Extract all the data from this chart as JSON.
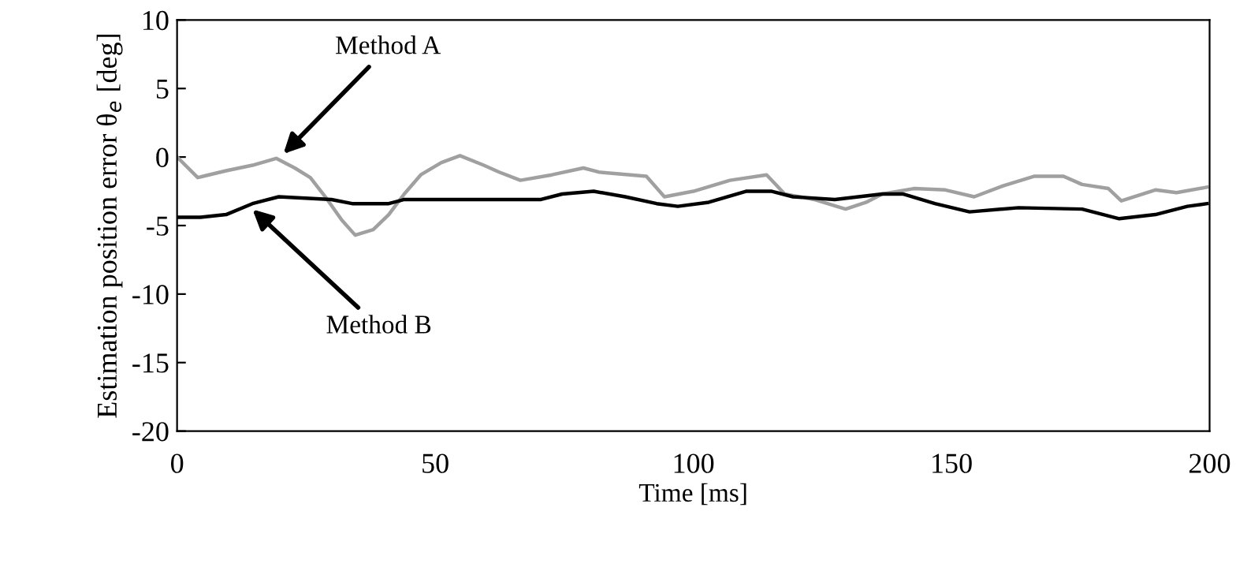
{
  "chart_data": {
    "type": "line",
    "xlabel": "Time [ms]",
    "ylabel": "Estimation position error θ$_{e}$ [deg]",
    "xlim": [
      0,
      200
    ],
    "ylim": [
      -20,
      10
    ],
    "xticks": [
      0,
      50,
      100,
      150,
      200
    ],
    "yticks": [
      -20,
      -15,
      -10,
      -5,
      0,
      5,
      10
    ],
    "grid": false,
    "legend": false,
    "marker": "none",
    "line_style": "solid",
    "series": [
      {
        "color": "#a0a0a0",
        "x": [
          0,
          4,
          9.5,
          14.6,
          19.2,
          22.8,
          25.8,
          28.9,
          31.9,
          34.5,
          38,
          41,
          44,
          47.2,
          51.2,
          54.8,
          59.4,
          62.4,
          66.5,
          72.6,
          78.7,
          81.7,
          90.9,
          94.4,
          100,
          107.1,
          114.2,
          117.7,
          123.4,
          129.5,
          133.5,
          136.6,
          142.7,
          148.8,
          154.4,
          160,
          166.1,
          171.7,
          175.3,
          180.4,
          182.9,
          189.5,
          193.6,
          199.5
        ],
        "values": [
          0,
          -1.5,
          -1.0,
          -0.6,
          -0.1,
          -0.8,
          -1.5,
          -3.0,
          -4.6,
          -5.7,
          -5.3,
          -4.2,
          -2.7,
          -1.3,
          -0.4,
          0.1,
          -0.6,
          -1.1,
          -1.7,
          -1.3,
          -0.8,
          -1.1,
          -1.4,
          -2.9,
          -2.5,
          -1.7,
          -1.3,
          -2.7,
          -3.1,
          -3.8,
          -3.3,
          -2.7,
          -2.3,
          -2.4,
          -2.9,
          -2.1,
          -1.4,
          -1.4,
          -2.0,
          -2.3,
          -3.2,
          -2.4,
          -2.6,
          -2.2
        ]
      },
      {
        "color": "#000000",
        "x": [
          0,
          4.5,
          9.5,
          14.6,
          19.7,
          29.9,
          33.9,
          41,
          44,
          57.3,
          70.5,
          74.6,
          80.7,
          86.8,
          92.9,
          97,
          103,
          110.2,
          115.2,
          119.3,
          127.4,
          136.6,
          140.7,
          146.8,
          153.5,
          163,
          175.3,
          182.5,
          189.5,
          195.7,
          199.5
        ],
        "values": [
          -4.4,
          -4.4,
          -4.2,
          -3.4,
          -2.9,
          -3.1,
          -3.4,
          -3.4,
          -3.1,
          -3.1,
          -3.1,
          -2.7,
          -2.5,
          -2.9,
          -3.4,
          -3.6,
          -3.3,
          -2.5,
          -2.5,
          -2.9,
          -3.1,
          -2.7,
          -2.7,
          -3.4,
          -4.0,
          -3.7,
          -3.8,
          -4.5,
          -4.2,
          -3.6,
          -3.4
        ]
      }
    ],
    "annotations": [
      {
        "text": "Method A",
        "x": 20,
        "y": 0
      },
      {
        "text": "Method B",
        "x": 14,
        "y": -3.6
      }
    ]
  }
}
